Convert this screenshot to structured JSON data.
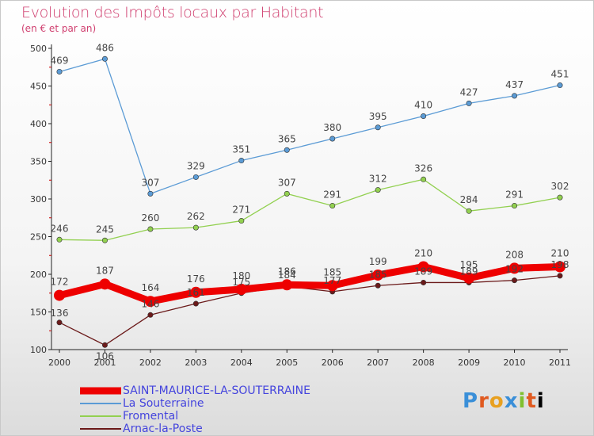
{
  "header": {
    "title": "Evolution des Impôts locaux par Habitant",
    "subtitle": "(en € et par an)"
  },
  "logo": {
    "text": "Proxiti"
  },
  "chart_data": {
    "type": "line",
    "title": "Evolution des Impôts locaux par Habitant",
    "subtitle": "(en € et par an)",
    "x": [
      "2000",
      "2001",
      "2002",
      "2003",
      "2004",
      "2005",
      "2006",
      "2007",
      "2008",
      "2009",
      "2010",
      "2011"
    ],
    "ylim": [
      100,
      500
    ],
    "yticks": [
      100,
      150,
      200,
      250,
      300,
      350,
      400,
      450,
      500
    ],
    "grid": false,
    "legend_position": "bottom-left",
    "series": [
      {
        "name": "SAINT-MAURICE-LA-SOUTERRAINE",
        "color": "#ee0000",
        "width": "thick",
        "values": [
          172,
          187,
          164,
          176,
          180,
          186,
          185,
          199,
          210,
          195,
          208,
          210
        ]
      },
      {
        "name": "La Souterraine",
        "color": "#5b9bd5",
        "values": [
          469,
          486,
          307,
          329,
          351,
          365,
          380,
          395,
          410,
          427,
          437,
          451
        ]
      },
      {
        "name": "Fromental",
        "color": "#92d050",
        "values": [
          246,
          245,
          260,
          262,
          271,
          307,
          291,
          312,
          326,
          284,
          291,
          302
        ]
      },
      {
        "name": "Arnac-la-Poste",
        "color": "#6b1a1a",
        "values": [
          136,
          106,
          146,
          161,
          175,
          184,
          177,
          185,
          189,
          189,
          192,
          198
        ]
      }
    ]
  }
}
